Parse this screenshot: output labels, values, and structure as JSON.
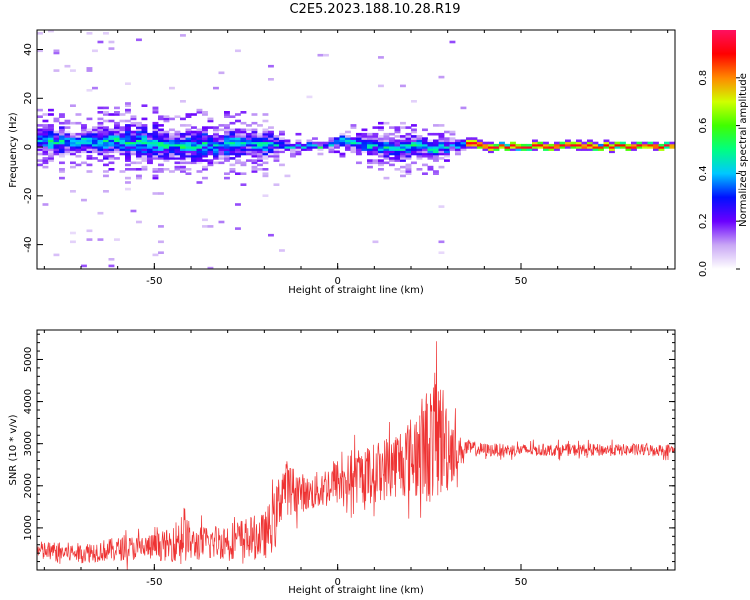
{
  "figure": {
    "title": "C2E5.2023.188.10.28.R19"
  },
  "chart_data": [
    {
      "type": "heatmap",
      "title": "",
      "xlabel": "Height of straight line (km)",
      "ylabel": "Frequency (Hz)",
      "xlim": [
        -82,
        92
      ],
      "ylim": [
        -50,
        48
      ],
      "x_ticks": [
        -50,
        0,
        50
      ],
      "y_ticks": [
        -40,
        -20,
        0,
        20,
        40
      ],
      "colorbar": {
        "label": "Normalized spectral amplitude",
        "range": [
          0,
          1
        ],
        "ticks": [
          0.0,
          0.2,
          0.4,
          0.6,
          0.8
        ],
        "colors": [
          "#ffffff",
          "#c9a7f5",
          "#6a00ff",
          "#0010ff",
          "#00c8ff",
          "#00ff80",
          "#40ff00",
          "#d0ff00",
          "#ff8800",
          "#ff0000",
          "#ff1060"
        ]
      },
      "ridge": {
        "x": [
          -82,
          -70,
          -60,
          -50,
          -40,
          -30,
          -20,
          -15,
          -5,
          0,
          5,
          10,
          15,
          20,
          25,
          30,
          35,
          40,
          50,
          60,
          70,
          80,
          92
        ],
        "center_hz": [
          2,
          2,
          2,
          1,
          0,
          1,
          1,
          0,
          0,
          2,
          1,
          0,
          -1,
          0,
          -1,
          0,
          1,
          0,
          0,
          0,
          0,
          0,
          0
        ],
        "half_width_hz": [
          5,
          5,
          6,
          6,
          6,
          5,
          5,
          2,
          1,
          3,
          3,
          4,
          4,
          5,
          4,
          3,
          2,
          1.5,
          1.5,
          1.5,
          1.5,
          1.5,
          1.5
        ]
      },
      "grid": false
    },
    {
      "type": "line",
      "title": "",
      "xlabel": "Height of straight line (km)",
      "ylabel": "SNR (10 * v/v)",
      "xlim": [
        -82,
        92
      ],
      "ylim": [
        0,
        5700
      ],
      "x_ticks": [
        -50,
        0,
        50
      ],
      "y_ticks": [
        1000,
        2000,
        3000,
        4000,
        5000
      ],
      "color": "#ee3333",
      "envelope": {
        "x": [
          -82,
          -70,
          -60,
          -50,
          -45,
          -42,
          -40,
          -30,
          -20,
          -17,
          -15,
          -12,
          -8,
          -5,
          0,
          5,
          10,
          15,
          20,
          22,
          25,
          27,
          30,
          33,
          35,
          40,
          50,
          60,
          70,
          80,
          92
        ],
        "mean": [
          450,
          400,
          500,
          550,
          600,
          900,
          600,
          700,
          800,
          1200,
          2000,
          1900,
          1800,
          1900,
          2100,
          2200,
          2300,
          2500,
          2700,
          2800,
          3000,
          3200,
          3000,
          2800,
          2900,
          2850,
          2850,
          2850,
          2850,
          2850,
          2850
        ],
        "spread": [
          300,
          300,
          350,
          400,
          500,
          900,
          500,
          550,
          700,
          900,
          900,
          700,
          500,
          600,
          700,
          800,
          900,
          1000,
          1200,
          1500,
          1800,
          2000,
          1500,
          500,
          250,
          200,
          180,
          180,
          180,
          180,
          180
        ]
      },
      "grid": false
    }
  ]
}
